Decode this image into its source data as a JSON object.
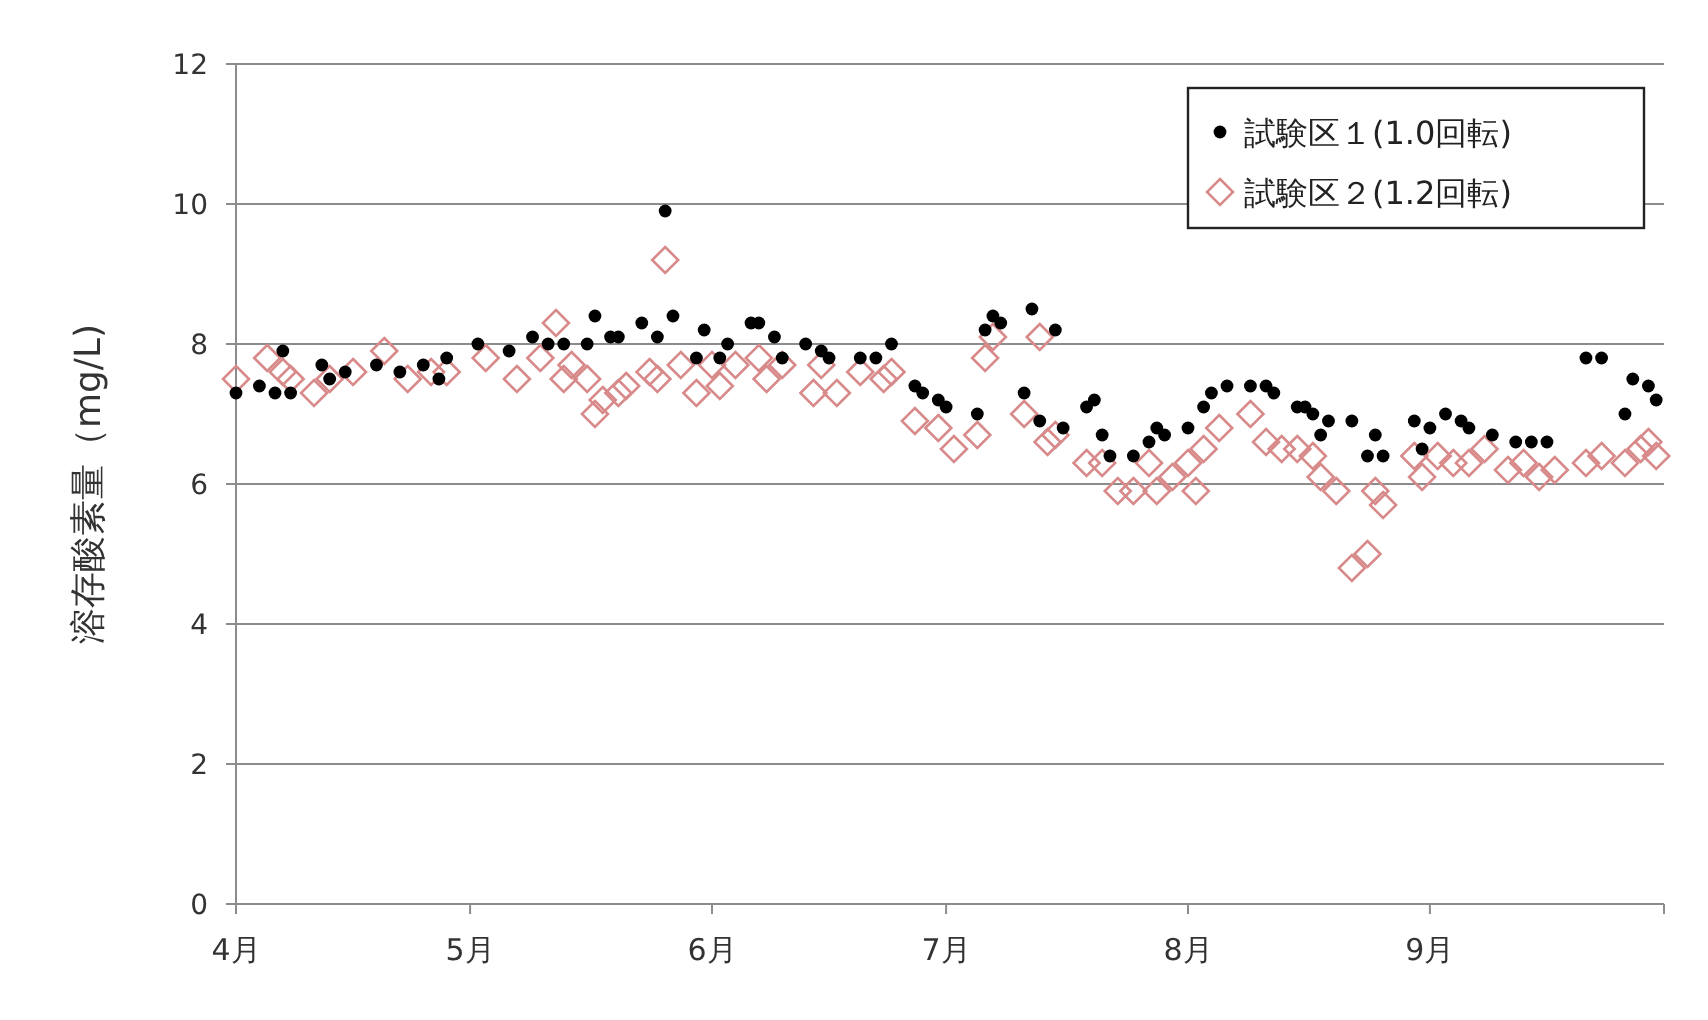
{
  "chart_data": {
    "type": "scatter",
    "ylabel": "溶存酸素量（mg/L)",
    "xlim": [
      "--04-01",
      "--10-01"
    ],
    "xticks": [
      {
        "value": "--04-01",
        "label": "4月"
      },
      {
        "value": "--05-01",
        "label": "5月"
      },
      {
        "value": "--06-01",
        "label": "6月"
      },
      {
        "value": "--07-01",
        "label": "7月"
      },
      {
        "value": "--08-01",
        "label": "8月"
      },
      {
        "value": "--09-01",
        "label": "9月"
      },
      {
        "value": "--10-01",
        "label": null
      }
    ],
    "ylim": [
      0,
      12
    ],
    "yticks": [
      0,
      2,
      4,
      6,
      8,
      10,
      12
    ],
    "grid": "y",
    "legend": "top right",
    "series": [
      {
        "name": "試験区１(1.0回転)",
        "color": "#000000",
        "marker": "circle",
        "x": [
          "--04-01",
          "--04-04",
          "--04-06",
          "--04-07",
          "--04-08",
          "--04-12",
          "--04-13",
          "--04-15",
          "--04-19",
          "--04-22",
          "--04-25",
          "--04-27",
          "--04-28",
          "--05-02",
          "--05-06",
          "--05-09",
          "--05-11",
          "--05-13",
          "--05-16",
          "--05-17",
          "--05-19",
          "--05-20",
          "--05-23",
          "--05-25",
          "--05-26",
          "--05-27",
          "--05-30",
          "--05-31",
          "--06-02",
          "--06-03",
          "--06-06",
          "--06-07",
          "--06-09",
          "--06-10",
          "--06-13",
          "--06-15",
          "--06-16",
          "--06-20",
          "--06-22",
          "--06-24",
          "--06-27",
          "--06-28",
          "--06-30",
          "--07-01",
          "--07-05",
          "--07-06",
          "--07-07",
          "--07-08",
          "--07-11",
          "--07-12",
          "--07-13",
          "--07-15",
          "--07-16",
          "--07-19",
          "--07-20",
          "--07-21",
          "--07-22",
          "--07-25",
          "--07-27",
          "--07-28",
          "--07-29",
          "--08-01",
          "--08-03",
          "--08-04",
          "--08-06",
          "--08-09",
          "--08-11",
          "--08-12",
          "--08-15",
          "--08-16",
          "--08-17",
          "--08-18",
          "--08-19",
          "--08-22",
          "--08-24",
          "--08-25",
          "--08-26",
          "--08-30",
          "--08-31",
          "--09-01",
          "--09-03",
          "--09-05",
          "--09-06",
          "--09-09",
          "--09-12",
          "--09-14",
          "--09-16",
          "--09-21",
          "--09-23",
          "--09-26",
          "--09-27",
          "--09-29",
          "--09-30"
        ],
        "values": [
          7.3,
          7.4,
          7.3,
          7.9,
          7.3,
          7.7,
          7.5,
          7.6,
          7.7,
          7.6,
          7.7,
          7.5,
          7.8,
          8.0,
          7.9,
          8.1,
          8.0,
          8.0,
          8.0,
          8.4,
          8.1,
          8.1,
          8.3,
          8.1,
          9.9,
          8.4,
          7.8,
          8.2,
          7.8,
          8.0,
          8.3,
          8.3,
          8.1,
          7.8,
          8.0,
          7.9,
          7.8,
          7.8,
          7.8,
          8.0,
          7.4,
          7.3,
          7.2,
          7.1,
          7.0,
          8.2,
          8.4,
          8.3,
          7.3,
          8.5,
          6.9,
          8.2,
          6.8,
          7.1,
          7.2,
          6.7,
          6.4,
          6.4,
          6.6,
          6.8,
          6.7,
          6.8,
          7.1,
          7.3,
          7.4,
          7.4,
          7.4,
          7.3,
          7.1,
          7.1,
          7.0,
          6.7,
          6.9,
          6.9,
          6.4,
          6.7,
          6.4,
          6.9,
          6.5,
          6.8,
          7.0,
          6.9,
          6.8,
          6.7,
          6.6,
          6.6,
          6.6,
          7.8,
          7.8,
          7.0,
          7.5,
          7.4,
          7.2
        ]
      },
      {
        "name": "試験区２(1.2回転)",
        "color": "#d88a8a",
        "marker": "diamond",
        "x": [
          "--04-01",
          "--04-05",
          "--04-07",
          "--04-08",
          "--04-11",
          "--04-13",
          "--04-16",
          "--04-20",
          "--04-23",
          "--04-26",
          "--04-28",
          "--05-03",
          "--05-07",
          "--05-10",
          "--05-12",
          "--05-13",
          "--05-14",
          "--05-16",
          "--05-17",
          "--05-18",
          "--05-20",
          "--05-21",
          "--05-24",
          "--05-25",
          "--05-26",
          "--05-28",
          "--05-30",
          "--06-01",
          "--06-02",
          "--06-04",
          "--06-07",
          "--06-08",
          "--06-10",
          "--06-14",
          "--06-15",
          "--06-17",
          "--06-20",
          "--06-23",
          "--06-24",
          "--06-27",
          "--06-30",
          "--07-02",
          "--07-05",
          "--07-06",
          "--07-07",
          "--07-11",
          "--07-13",
          "--07-14",
          "--07-15",
          "--07-19",
          "--07-21",
          "--07-23",
          "--07-25",
          "--07-27",
          "--07-28",
          "--07-30",
          "--08-01",
          "--08-02",
          "--08-03",
          "--08-05",
          "--08-09",
          "--08-11",
          "--08-13",
          "--08-15",
          "--08-17",
          "--08-18",
          "--08-20",
          "--08-22",
          "--08-24",
          "--08-25",
          "--08-26",
          "--08-30",
          "--08-31",
          "--09-02",
          "--09-04",
          "--09-06",
          "--09-08",
          "--09-11",
          "--09-13",
          "--09-15",
          "--09-17",
          "--09-21",
          "--09-23",
          "--09-26",
          "--09-28",
          "--09-29",
          "--09-30"
        ],
        "values": [
          7.5,
          7.8,
          7.6,
          7.5,
          7.3,
          7.5,
          7.6,
          7.9,
          7.5,
          7.6,
          7.6,
          7.8,
          7.5,
          7.8,
          8.3,
          7.5,
          7.7,
          7.5,
          7.0,
          7.2,
          7.3,
          7.4,
          7.6,
          7.5,
          9.2,
          7.7,
          7.3,
          7.7,
          7.4,
          7.7,
          7.8,
          7.5,
          7.7,
          7.3,
          7.7,
          7.3,
          7.6,
          7.5,
          7.6,
          6.9,
          6.8,
          6.5,
          6.7,
          7.8,
          8.1,
          7.0,
          8.1,
          6.6,
          6.7,
          6.3,
          6.3,
          5.9,
          5.9,
          6.3,
          5.9,
          6.1,
          6.3,
          5.9,
          6.5,
          6.8,
          7.0,
          6.6,
          6.5,
          6.5,
          6.4,
          6.1,
          5.9,
          4.8,
          5.0,
          5.9,
          5.7,
          6.4,
          6.1,
          6.4,
          6.3,
          6.3,
          6.5,
          6.2,
          6.3,
          6.1,
          6.2,
          6.3,
          6.4,
          6.3,
          6.5,
          6.6,
          6.4
        ]
      }
    ]
  }
}
